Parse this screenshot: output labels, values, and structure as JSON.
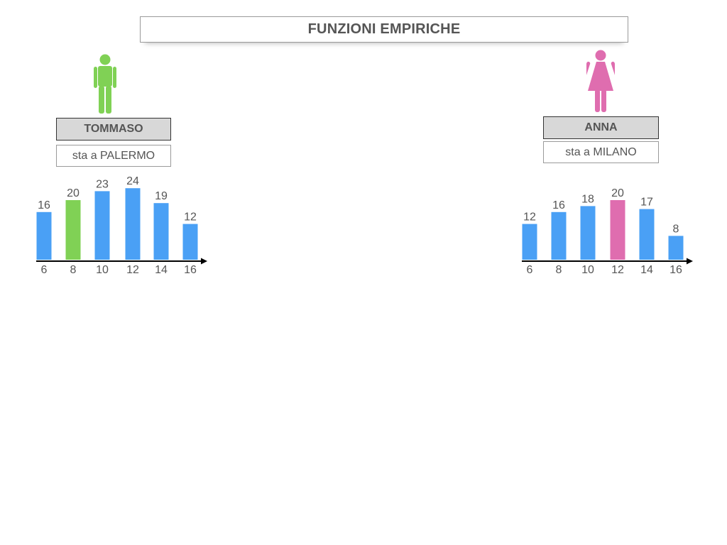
{
  "title": "FUNZIONI EMPIRICHE",
  "people": [
    {
      "name": "TOMMASO",
      "city": "sta a PALERMO",
      "icon": "male-person-icon",
      "color": "#80d155"
    },
    {
      "name": "ANNA",
      "city": "sta a MILANO",
      "icon": "female-person-icon",
      "color": "#df6daf"
    }
  ],
  "colors": {
    "bar": "#4aa0f5",
    "axis": "#000000",
    "label": "#555555"
  },
  "chart_data": [
    {
      "type": "bar",
      "categories": [
        "6",
        "8",
        "10",
        "12",
        "14",
        "16"
      ],
      "values": [
        16,
        20,
        23,
        24,
        19,
        12
      ],
      "highlight_index": 1,
      "highlight_color": "#80d155"
    },
    {
      "type": "bar",
      "categories": [
        "6",
        "8",
        "10",
        "12",
        "14",
        "16"
      ],
      "values": [
        12,
        16,
        18,
        20,
        17,
        8
      ],
      "highlight_index": 3,
      "highlight_color": "#df6daf"
    }
  ]
}
